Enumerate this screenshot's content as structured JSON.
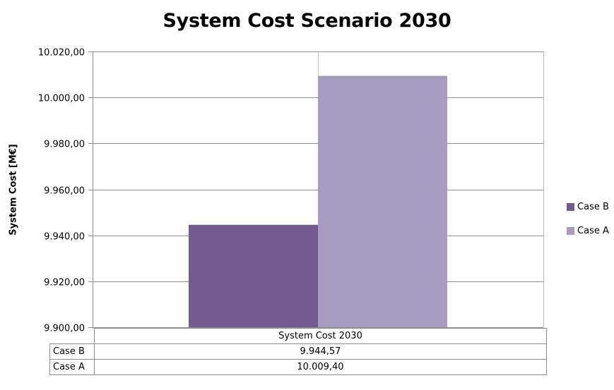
{
  "chart_data": {
    "type": "bar",
    "title": "System Cost Scenario 2030",
    "ylabel": "System Cost [M€]",
    "xlabel": "",
    "categories": [
      "System Cost 2030"
    ],
    "series": [
      {
        "name": "Case B",
        "values": [
          9944.57
        ],
        "value_label": "9.944,57",
        "color": "#735a90"
      },
      {
        "name": "Case A",
        "values": [
          10009.4
        ],
        "value_label": "10.009,40",
        "color": "#a99bc0"
      }
    ],
    "ylim": [
      9900,
      10020
    ],
    "yticks": [
      9900,
      9920,
      9940,
      9960,
      9980,
      10000,
      10020
    ],
    "ytick_labels": [
      "9.900,00",
      "9.920,00",
      "9.940,00",
      "9.960,00",
      "9.980,00",
      "10.000,00",
      "10.020,00"
    ],
    "grid": true,
    "legend_position": "right",
    "data_table": true
  }
}
